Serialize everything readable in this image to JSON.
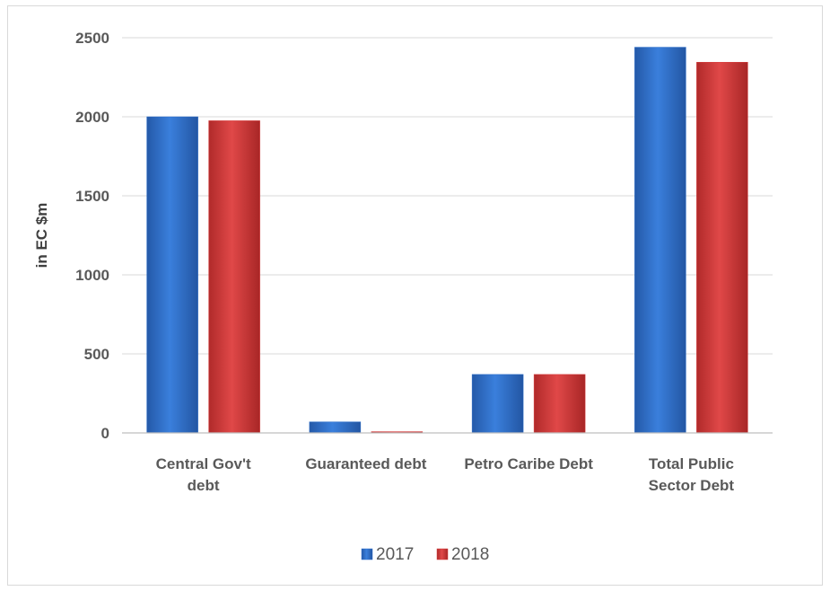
{
  "chart_data": {
    "type": "bar",
    "title": "",
    "xlabel": "",
    "ylabel": "in EC $m",
    "categories": [
      [
        "Central Gov't",
        "debt"
      ],
      [
        "Guaranteed debt"
      ],
      [
        "Petro Caribe Debt"
      ],
      [
        "Total Public",
        "Sector Debt"
      ]
    ],
    "series": [
      {
        "name": "2017",
        "color": "#2e6fc9",
        "values": [
          2000,
          70,
          370,
          2440
        ]
      },
      {
        "name": "2018",
        "color": "#d63c3c",
        "values": [
          1975,
          8,
          370,
          2345
        ]
      }
    ],
    "ylim": [
      0,
      2500
    ],
    "yticks": [
      0,
      500,
      1000,
      1500,
      2000,
      2500
    ],
    "grid": true,
    "legend_position": "bottom"
  }
}
